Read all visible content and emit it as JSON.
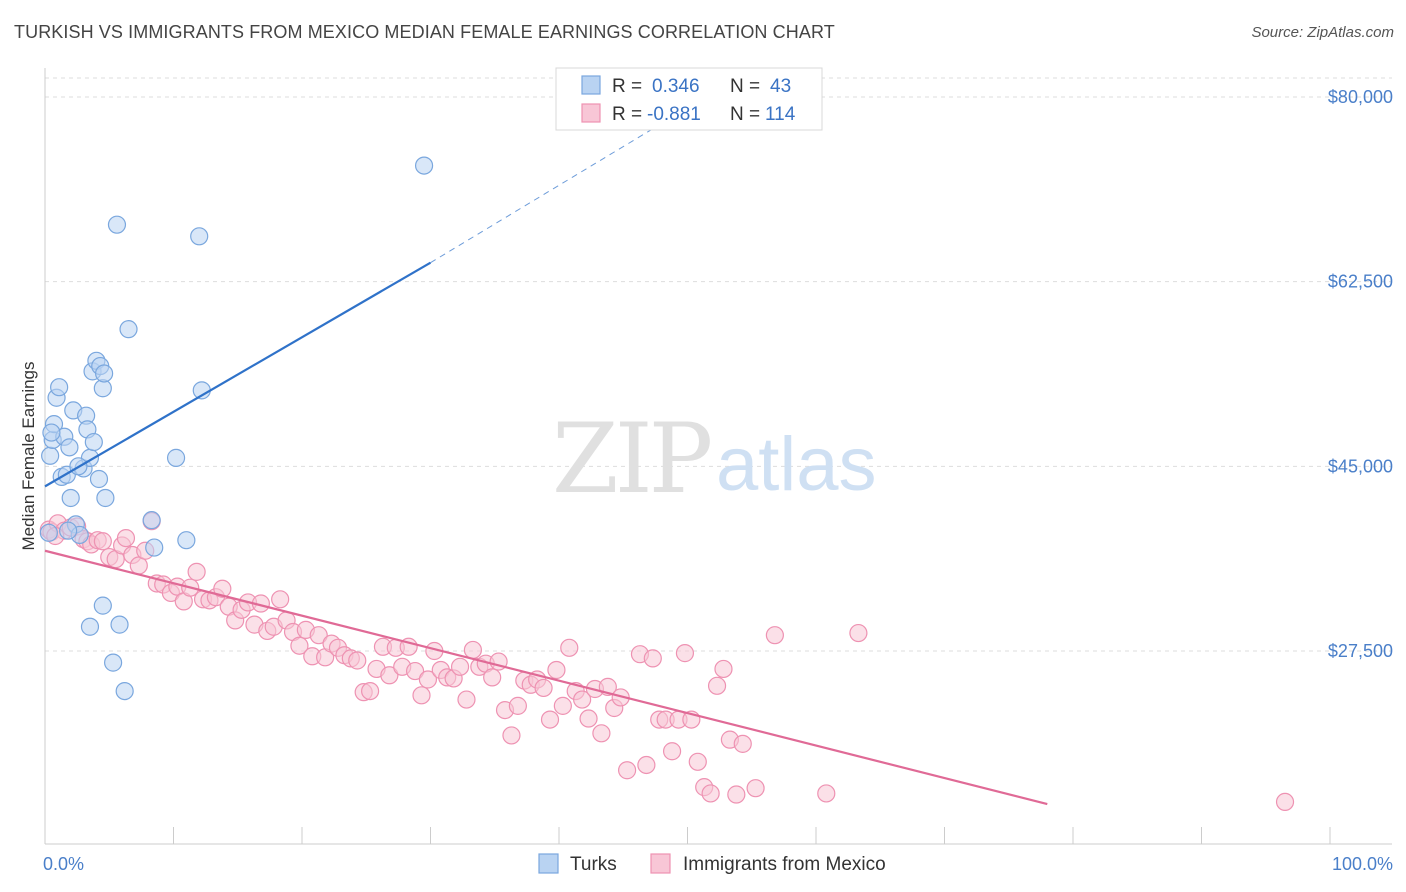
{
  "title": "TURKISH VS IMMIGRANTS FROM MEXICO MEDIAN FEMALE EARNINGS CORRELATION CHART",
  "source": "Source: ZipAtlas.com",
  "watermark": {
    "zip": "ZIP",
    "atlas": "atlas"
  },
  "legend": {
    "r_label": "R =",
    "n_label": "N =",
    "rows": [
      {
        "r": "0.346",
        "n": "43"
      },
      {
        "r": "-0.881",
        "n": "114"
      }
    ]
  },
  "colors": {
    "turks_fill": "#b9d3f2",
    "turks_stroke": "#7aa7de",
    "turks_line": "#2f72c9",
    "mexico_fill": "#f8c6d6",
    "mexico_stroke": "#ee92b2",
    "mexico_line": "#e06a96",
    "grid": "#dddddd",
    "tick_label": "#4a7fc9"
  },
  "chart_data": {
    "type": "scatter",
    "title": "TURKISH VS IMMIGRANTS FROM MEXICO MEDIAN FEMALE EARNINGS CORRELATION CHART",
    "xlabel": "",
    "ylabel": "Median Female Earnings",
    "xlim": [
      0,
      100
    ],
    "ylim": [
      13000,
      83000
    ],
    "x_tick_labels": [
      "0.0%",
      "100.0%"
    ],
    "y_ticks": [
      27500,
      45000,
      62500,
      80000
    ],
    "y_tick_labels": [
      "$27,500",
      "$45,000",
      "$62,500",
      "$80,000"
    ],
    "grid": "horizontal dashed",
    "legend_position": "top-center",
    "series": [
      {
        "name": "Turks",
        "r": 0.346,
        "n": 43,
        "trend": {
          "x0": 0,
          "y0": 43100,
          "x1": 30,
          "y1": 64300,
          "dashed_to_x": 48,
          "dashed_to_y": 77500
        },
        "points": [
          [
            0.4,
            46000
          ],
          [
            0.6,
            47500
          ],
          [
            0.7,
            49000
          ],
          [
            0.9,
            51500
          ],
          [
            1.1,
            52500
          ],
          [
            1.3,
            44000
          ],
          [
            1.5,
            47800
          ],
          [
            1.7,
            44200
          ],
          [
            1.9,
            46800
          ],
          [
            2.0,
            42000
          ],
          [
            2.2,
            50300
          ],
          [
            2.4,
            39500
          ],
          [
            2.7,
            38500
          ],
          [
            3.0,
            44800
          ],
          [
            3.2,
            49800
          ],
          [
            3.3,
            48500
          ],
          [
            3.5,
            45800
          ],
          [
            3.7,
            54000
          ],
          [
            3.8,
            47300
          ],
          [
            4.2,
            43800
          ],
          [
            4.0,
            55000
          ],
          [
            4.3,
            54500
          ],
          [
            4.5,
            52400
          ],
          [
            4.6,
            53800
          ],
          [
            4.5,
            31800
          ],
          [
            4.7,
            42000
          ],
          [
            3.5,
            29800
          ],
          [
            5.3,
            26400
          ],
          [
            5.6,
            67900
          ],
          [
            5.8,
            30000
          ],
          [
            6.2,
            23700
          ],
          [
            6.5,
            58000
          ],
          [
            0.5,
            48200
          ],
          [
            2.6,
            45000
          ],
          [
            8.5,
            37300
          ],
          [
            8.3,
            39900
          ],
          [
            10.2,
            45800
          ],
          [
            11.0,
            38000
          ],
          [
            12.0,
            66800
          ],
          [
            12.2,
            52200
          ],
          [
            29.5,
            73500
          ],
          [
            0.3,
            38700
          ],
          [
            1.8,
            38900
          ]
        ]
      },
      {
        "name": "Immigrants from Mexico",
        "r": -0.881,
        "n": 114,
        "trend": {
          "x0": 0,
          "y0": 37000,
          "x1": 78,
          "y1": 13000
        },
        "points": [
          [
            0.3,
            39000
          ],
          [
            0.5,
            38800
          ],
          [
            1.0,
            39600
          ],
          [
            1.5,
            38900
          ],
          [
            2.0,
            39200
          ],
          [
            2.5,
            39300
          ],
          [
            3.0,
            38100
          ],
          [
            3.3,
            37900
          ],
          [
            3.6,
            37600
          ],
          [
            4.1,
            38000
          ],
          [
            4.5,
            37900
          ],
          [
            5.0,
            36400
          ],
          [
            5.5,
            36200
          ],
          [
            6.0,
            37500
          ],
          [
            6.3,
            38200
          ],
          [
            6.8,
            36600
          ],
          [
            7.3,
            35600
          ],
          [
            7.8,
            37000
          ],
          [
            8.3,
            39800
          ],
          [
            8.7,
            33900
          ],
          [
            9.2,
            33800
          ],
          [
            9.8,
            33000
          ],
          [
            10.3,
            33600
          ],
          [
            10.8,
            32200
          ],
          [
            11.3,
            33500
          ],
          [
            11.8,
            35000
          ],
          [
            12.3,
            32400
          ],
          [
            12.8,
            32300
          ],
          [
            13.3,
            32600
          ],
          [
            13.8,
            33400
          ],
          [
            14.3,
            31700
          ],
          [
            14.8,
            30400
          ],
          [
            15.3,
            31400
          ],
          [
            15.8,
            32100
          ],
          [
            16.3,
            30000
          ],
          [
            16.8,
            32000
          ],
          [
            17.3,
            29400
          ],
          [
            17.8,
            29800
          ],
          [
            18.3,
            32400
          ],
          [
            18.8,
            30400
          ],
          [
            19.3,
            29300
          ],
          [
            19.8,
            28000
          ],
          [
            20.3,
            29500
          ],
          [
            20.8,
            27000
          ],
          [
            21.3,
            29000
          ],
          [
            21.8,
            26900
          ],
          [
            22.3,
            28200
          ],
          [
            22.8,
            27800
          ],
          [
            23.3,
            27100
          ],
          [
            23.8,
            26800
          ],
          [
            24.3,
            26600
          ],
          [
            24.8,
            23600
          ],
          [
            25.3,
            23700
          ],
          [
            25.8,
            25800
          ],
          [
            26.3,
            27900
          ],
          [
            26.8,
            25200
          ],
          [
            27.3,
            27800
          ],
          [
            27.8,
            26000
          ],
          [
            28.3,
            27900
          ],
          [
            28.8,
            25600
          ],
          [
            29.3,
            23300
          ],
          [
            29.8,
            24800
          ],
          [
            30.3,
            27500
          ],
          [
            30.8,
            25700
          ],
          [
            31.3,
            25000
          ],
          [
            31.8,
            24900
          ],
          [
            32.3,
            26000
          ],
          [
            32.8,
            22900
          ],
          [
            33.3,
            27600
          ],
          [
            33.8,
            26000
          ],
          [
            34.3,
            26300
          ],
          [
            34.8,
            25000
          ],
          [
            35.3,
            26500
          ],
          [
            35.8,
            21900
          ],
          [
            36.3,
            19500
          ],
          [
            36.8,
            22300
          ],
          [
            37.3,
            24700
          ],
          [
            37.8,
            24300
          ],
          [
            38.3,
            24800
          ],
          [
            38.8,
            24000
          ],
          [
            39.3,
            21000
          ],
          [
            39.8,
            25700
          ],
          [
            40.3,
            22300
          ],
          [
            40.8,
            27800
          ],
          [
            41.3,
            23700
          ],
          [
            41.8,
            22900
          ],
          [
            42.3,
            21100
          ],
          [
            42.8,
            23900
          ],
          [
            43.3,
            19700
          ],
          [
            43.8,
            24100
          ],
          [
            44.3,
            22100
          ],
          [
            44.8,
            23100
          ],
          [
            45.3,
            16200
          ],
          [
            46.3,
            27200
          ],
          [
            46.8,
            16700
          ],
          [
            47.3,
            26800
          ],
          [
            47.8,
            21000
          ],
          [
            48.3,
            21000
          ],
          [
            48.8,
            18000
          ],
          [
            49.3,
            21000
          ],
          [
            49.8,
            27300
          ],
          [
            50.3,
            21000
          ],
          [
            50.8,
            17000
          ],
          [
            51.3,
            14600
          ],
          [
            51.8,
            14000
          ],
          [
            52.3,
            24200
          ],
          [
            52.8,
            25800
          ],
          [
            53.3,
            19100
          ],
          [
            53.8,
            13900
          ],
          [
            54.3,
            18700
          ],
          [
            55.3,
            14500
          ],
          [
            56.8,
            29000
          ],
          [
            60.8,
            14000
          ],
          [
            63.3,
            29200
          ],
          [
            0.8,
            38400
          ],
          [
            96.5,
            13200
          ]
        ]
      }
    ]
  }
}
